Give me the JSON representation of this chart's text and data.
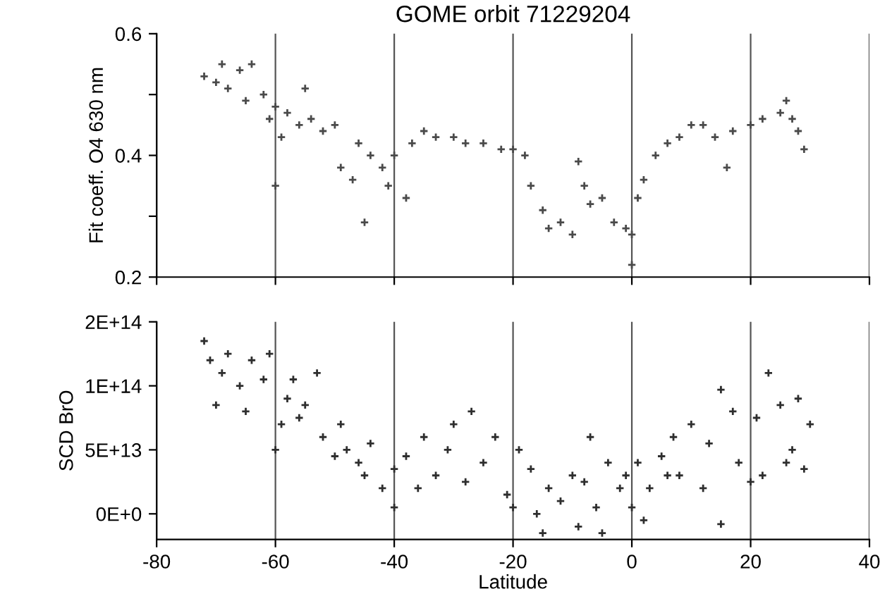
{
  "chart_data": [
    {
      "type": "scatter",
      "title": "GOME orbit 71229204",
      "ylabel": "Fit coeff. O4 630 nm",
      "xlim": [
        -80,
        40
      ],
      "ylim": [
        0.2,
        0.6
      ],
      "xticks": [
        -80,
        -60,
        -40,
        -20,
        0,
        20,
        40
      ],
      "yticks": [
        0.2,
        {
          "value": 0.3,
          "label": null
        },
        0.4,
        {
          "value": 0.5,
          "label": null
        },
        0.6
      ],
      "tick_labels": "y",
      "grid": "x",
      "marker": "cross",
      "series": [
        {
          "color": "#4a4a4a",
          "x": [
            -72,
            -70,
            -69,
            -68,
            -66,
            -65,
            -64,
            -62,
            -61,
            -60,
            -60,
            -59,
            -58,
            -56,
            -55,
            -54,
            -52,
            -50,
            -49,
            -47,
            -46,
            -45,
            -44,
            -42,
            -41,
            -40,
            -38,
            -37,
            -35,
            -33,
            -30,
            -28,
            -25,
            -22,
            -20,
            -18,
            -17,
            -15,
            -14,
            -12,
            -10,
            -9,
            -8,
            -7,
            -5,
            -3,
            -1,
            0,
            0,
            1,
            2,
            4,
            6,
            8,
            10,
            12,
            14,
            16,
            17,
            20,
            22,
            25,
            26,
            27,
            28,
            29
          ],
          "values": [
            0.53,
            0.52,
            0.55,
            0.51,
            0.54,
            0.49,
            0.55,
            0.5,
            0.46,
            0.48,
            0.35,
            0.43,
            0.47,
            0.45,
            0.51,
            0.46,
            0.44,
            0.45,
            0.38,
            0.36,
            0.42,
            0.29,
            0.4,
            0.38,
            0.35,
            0.4,
            0.33,
            0.42,
            0.44,
            0.43,
            0.43,
            0.42,
            0.42,
            0.41,
            0.41,
            0.4,
            0.35,
            0.31,
            0.28,
            0.29,
            0.27,
            0.39,
            0.35,
            0.32,
            0.33,
            0.29,
            0.28,
            0.27,
            0.22,
            0.33,
            0.36,
            0.4,
            0.42,
            0.43,
            0.45,
            0.45,
            0.43,
            0.38,
            0.44,
            0.45,
            0.46,
            0.47,
            0.49,
            0.46,
            0.44,
            0.41
          ]
        }
      ]
    },
    {
      "type": "scatter",
      "xlabel": "Latitude",
      "ylabel": "SCD BrO",
      "xlim": [
        -80,
        40
      ],
      "ylim": [
        -20000000000000.0,
        150000000000000.0
      ],
      "xticks": [
        -80,
        -60,
        -40,
        -20,
        0,
        20,
        40
      ],
      "yticks": [
        {
          "value": 0,
          "label": "0E+0"
        },
        {
          "value": 50000000000000.0,
          "label": "5E+13"
        },
        {
          "value": 100000000000000.0,
          "label": "1E+14"
        },
        {
          "value": 150000000000000.0,
          "label": "2E+14"
        }
      ],
      "grid": "x",
      "marker": "cross",
      "series": [
        {
          "color": "#2e2e2e",
          "x": [
            -72,
            -71,
            -70,
            -69,
            -68,
            -66,
            -65,
            -64,
            -62,
            -61,
            -60,
            -59,
            -58,
            -57,
            -56,
            -55,
            -53,
            -52,
            -50,
            -49,
            -48,
            -46,
            -45,
            -44,
            -42,
            -40,
            -40,
            -38,
            -36,
            -35,
            -33,
            -31,
            -30,
            -28,
            -27,
            -25,
            -23,
            -21,
            -20,
            -19,
            -17,
            -16,
            -15,
            -14,
            -12,
            -10,
            -9,
            -8,
            -7,
            -6,
            -5,
            -4,
            -2,
            -1,
            0,
            1,
            2,
            3,
            5,
            6,
            7,
            8,
            10,
            12,
            13,
            15,
            15,
            17,
            18,
            20,
            21,
            22,
            23,
            25,
            26,
            27,
            28,
            29,
            30
          ],
          "values": [
            135000000000000.0,
            120000000000000.0,
            85000000000000.0,
            110000000000000.0,
            125000000000000.0,
            100000000000000.0,
            80000000000000.0,
            120000000000000.0,
            105000000000000.0,
            125000000000000.0,
            50000000000000.0,
            70000000000000.0,
            90000000000000.0,
            105000000000000.0,
            75000000000000.0,
            85000000000000.0,
            110000000000000.0,
            60000000000000.0,
            45000000000000.0,
            70000000000000.0,
            50000000000000.0,
            40000000000000.0,
            30000000000000.0,
            55000000000000.0,
            20000000000000.0,
            5000000000000.0,
            35000000000000.0,
            45000000000000.0,
            20000000000000.0,
            60000000000000.0,
            30000000000000.0,
            50000000000000.0,
            70000000000000.0,
            25000000000000.0,
            80000000000000.0,
            40000000000000.0,
            60000000000000.0,
            15000000000000.0,
            5000000000000.0,
            50000000000000.0,
            35000000000000.0,
            0,
            -15000000000000.0,
            20000000000000.0,
            10000000000000.0,
            30000000000000.0,
            -10000000000000.0,
            25000000000000.0,
            60000000000000.0,
            5000000000000.0,
            -15000000000000.0,
            40000000000000.0,
            20000000000000.0,
            30000000000000.0,
            5000000000000.0,
            40000000000000.0,
            -5000000000000.0,
            20000000000000.0,
            45000000000000.0,
            30000000000000.0,
            60000000000000.0,
            30000000000000.0,
            70000000000000.0,
            20000000000000.0,
            55000000000000.0,
            -8000000000000.0,
            97000000000000.0,
            80000000000000.0,
            40000000000000.0,
            25000000000000.0,
            75000000000000.0,
            30000000000000.0,
            110000000000000.0,
            85000000000000.0,
            40000000000000.0,
            50000000000000.0,
            90000000000000.0,
            35000000000000.0,
            70000000000000.0
          ]
        }
      ]
    }
  ]
}
